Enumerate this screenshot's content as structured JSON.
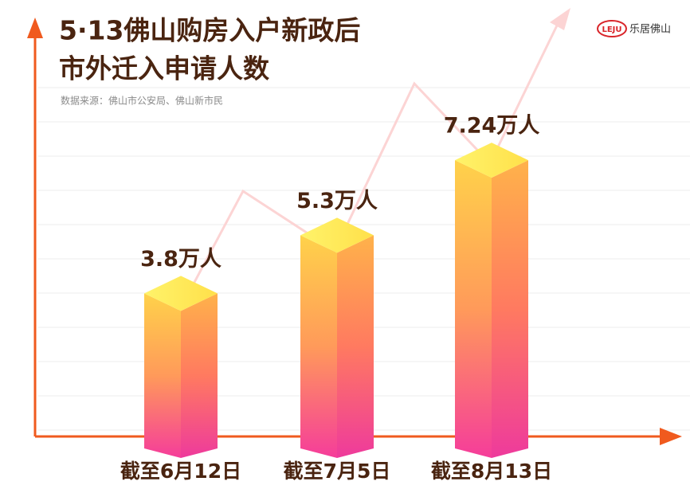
{
  "chart_data": {
    "type": "bar3d",
    "title": [
      "5·13佛山购房入户新政后",
      "市外迁入申请人数"
    ],
    "source": "数据来源：佛山市公安局、佛山新市民",
    "brand": {
      "mark": "LEJU",
      "name": "乐居佛山"
    },
    "categories": [
      "截至6月12日",
      "截至7月5日",
      "截至8月13日"
    ],
    "values": [
      3.8,
      5.3,
      7.24
    ],
    "value_labels": [
      "3.8万人",
      "5.3万人",
      "7.24万人"
    ]
  }
}
